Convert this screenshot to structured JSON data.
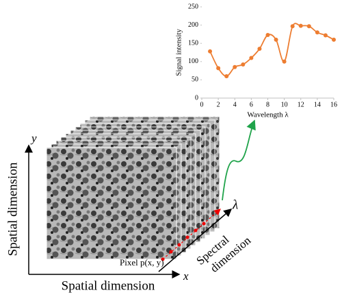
{
  "chart_data": {
    "type": "line",
    "x_label": "Wavelength λ",
    "y_label": "Signal intensity",
    "x": [
      1,
      2,
      3,
      4,
      5,
      6,
      7,
      8,
      9,
      10,
      11,
      12,
      13,
      14,
      15,
      16
    ],
    "series": [
      {
        "color": "#ed7d31",
        "values": [
          128,
          82,
          60,
          85,
          92,
          110,
          135,
          173,
          160,
          100,
          197,
          198,
          197,
          180,
          172,
          160
        ]
      }
    ],
    "xlim": [
      0,
      16
    ],
    "xticks": [
      0,
      2,
      4,
      6,
      8,
      10,
      12,
      14,
      16
    ],
    "ylim": [
      0,
      250
    ],
    "yticks": [
      0,
      50,
      100,
      150,
      200,
      250
    ]
  },
  "diagram": {
    "y_axis_label": "y",
    "x_axis_label": "x",
    "lambda_label": "λ",
    "left_label": "Spatial dimension",
    "bottom_label": "Spatial dimension",
    "spectral_label_1": "Spectral",
    "spectral_label_2": "dimension",
    "pixel_label": "Pixel p(x, y)"
  }
}
